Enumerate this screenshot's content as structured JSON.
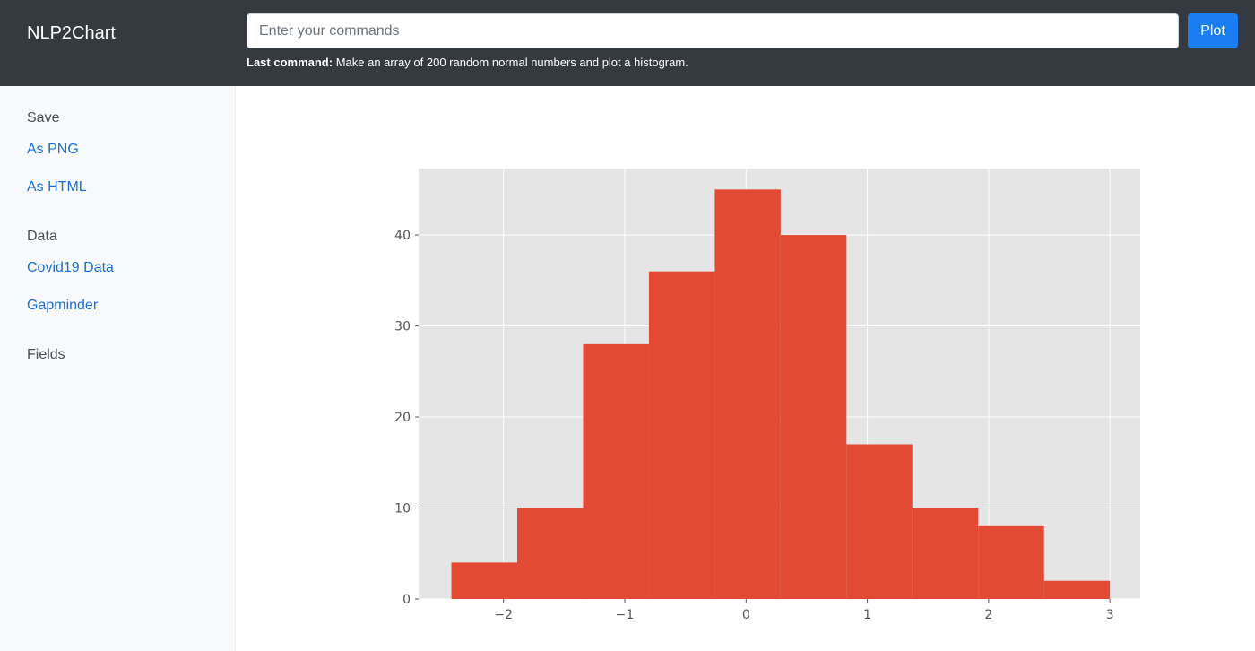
{
  "app": {
    "brand": "NLP2Chart"
  },
  "command_bar": {
    "placeholder": "Enter your commands",
    "value": "",
    "plot_label": "Plot",
    "last_command_label": "Last command:",
    "last_command_text": "Make an array of 200 random normal numbers and plot a histogram."
  },
  "sidebar": {
    "save_heading": "Save",
    "save_png": "As PNG",
    "save_html": "As HTML",
    "data_heading": "Data",
    "data_covid": "Covid19 Data",
    "data_gapminder": "Gapminder",
    "fields_heading": "Fields"
  },
  "colors": {
    "topbar": "#343a40",
    "accent": "#1b7ef0",
    "link": "#1a6fd0",
    "bar": "#e24a33",
    "plot_bg": "#e5e5e5",
    "grid": "#ffffff"
  },
  "chart_data": {
    "type": "bar",
    "subtype": "histogram",
    "title": "",
    "xlabel": "",
    "ylabel": "",
    "bin_edges": [
      -2.43,
      -1.887,
      -1.344,
      -0.801,
      -0.258,
      0.285,
      0.828,
      1.371,
      1.914,
      2.457,
      3.0
    ],
    "values": [
      4,
      10,
      28,
      36,
      45,
      40,
      17,
      10,
      8,
      2
    ],
    "xlim": [
      -2.7,
      3.25
    ],
    "ylim": [
      0,
      47.3
    ],
    "xticks": [
      -2,
      -1,
      0,
      1,
      2,
      3
    ],
    "xtick_labels": [
      "−2",
      "−1",
      "0",
      "1",
      "2",
      "3"
    ],
    "yticks": [
      0,
      10,
      20,
      30,
      40
    ],
    "ytick_labels": [
      "0",
      "10",
      "20",
      "30",
      "40"
    ],
    "grid": true,
    "legend": "none"
  }
}
